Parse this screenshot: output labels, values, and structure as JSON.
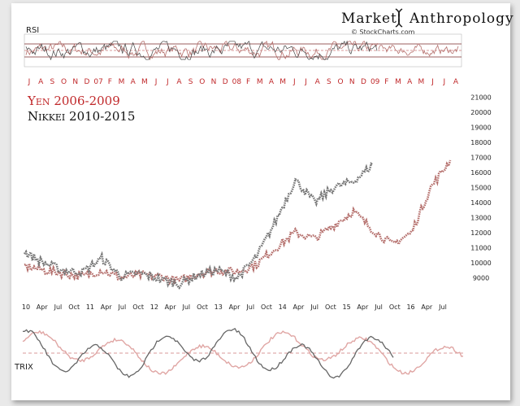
{
  "header": {
    "brand_left": "Market",
    "brand_right": "Anthropology",
    "source": "© StockCharts.com"
  },
  "colors": {
    "yen": "#b5706d",
    "nikkei": "#777777",
    "month_text": "#c0282a",
    "overlap": "#7a1a1a"
  },
  "legend": [
    {
      "label": "Yen 2006-2009",
      "color": "#c0282a"
    },
    {
      "label": "Nikkei 2010-2015",
      "color": "#111111"
    }
  ],
  "chart_data": [
    {
      "type": "line",
      "panel": "rsi",
      "title": "RSI",
      "top_axis_labels": [
        "J",
        "A",
        "S",
        "O",
        "N",
        "D",
        "07",
        "F",
        "M",
        "A",
        "M",
        "J",
        "J",
        "A",
        "S",
        "O",
        "N",
        "D",
        "08",
        "F",
        "M",
        "A",
        "M",
        "J",
        "J",
        "A",
        "S",
        "O",
        "N",
        "D",
        "09",
        "F",
        "M",
        "A",
        "M",
        "J",
        "J",
        "A"
      ],
      "reference_lines": [
        70,
        50,
        30
      ],
      "ylim": [
        0,
        100
      ]
    },
    {
      "type": "line",
      "panel": "price",
      "ylim": [
        8000,
        21500
      ],
      "y_ticks": [
        9000,
        10000,
        11000,
        12000,
        13000,
        14000,
        15000,
        16000,
        17000,
        18000,
        19000,
        20000,
        21000
      ],
      "x_labels": [
        "10",
        "Apr",
        "Jul",
        "Oct",
        "11",
        "Apr",
        "Jul",
        "Oct",
        "12",
        "Apr",
        "Jul",
        "Oct",
        "13",
        "Apr",
        "Jul",
        "Oct",
        "14",
        "Apr",
        "Jul",
        "Oct",
        "15",
        "Apr",
        "Jul",
        "Oct",
        "16",
        "Apr",
        "Jul"
      ],
      "series": [
        {
          "name": "Yen 2006-2009",
          "x": [
            0,
            2,
            4,
            6,
            8,
            10,
            12,
            14,
            16,
            18,
            20,
            22,
            24,
            26,
            28,
            30,
            32,
            34,
            36,
            38,
            40,
            42,
            44
          ],
          "y": [
            9800,
            9500,
            9300,
            9100,
            9500,
            9000,
            9200,
            9100,
            8800,
            9300,
            9500,
            9400,
            9900,
            11000,
            12000,
            11600,
            12500,
            13400,
            12200,
            11200,
            12000,
            15000,
            16800
          ]
        },
        {
          "name": "Nikkei 2010-2015",
          "x": [
            0,
            2,
            4,
            6,
            8,
            10,
            12,
            14,
            16,
            18,
            20,
            22,
            24,
            26,
            28,
            30,
            32,
            34,
            36
          ],
          "y": [
            10700,
            10000,
            9500,
            9400,
            10300,
            9100,
            9300,
            8900,
            8600,
            9200,
            9500,
            9000,
            10400,
            12800,
            15500,
            14000,
            15000,
            15400,
            16500
          ]
        }
      ]
    },
    {
      "type": "line",
      "panel": "trix",
      "title": "TRIX",
      "reference_lines": [
        0
      ]
    }
  ]
}
